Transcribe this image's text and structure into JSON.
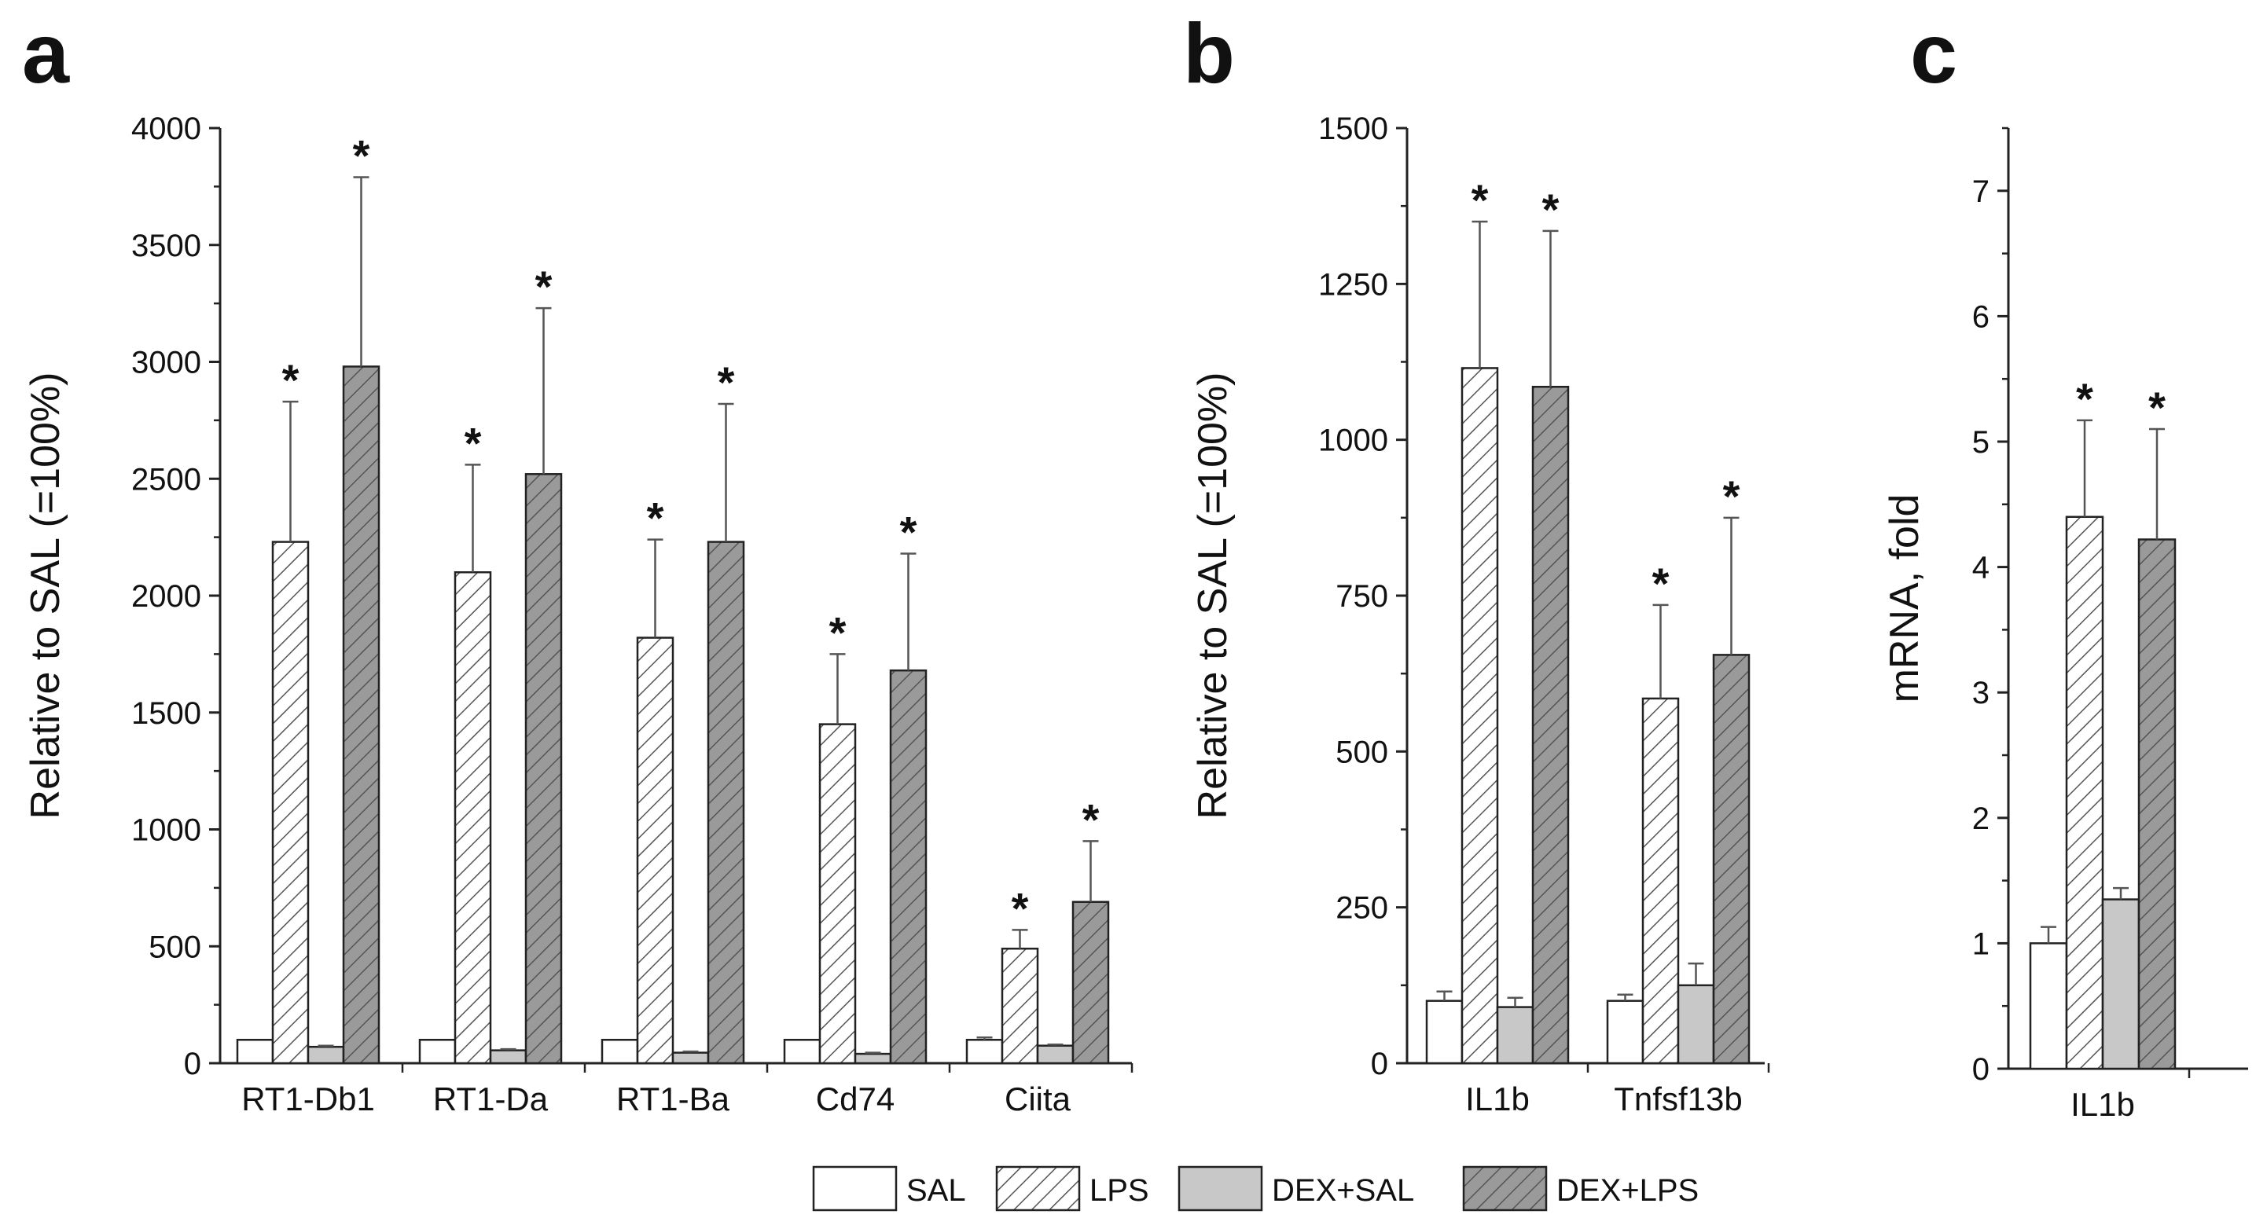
{
  "legend": [
    {
      "name": "SAL",
      "style": "white"
    },
    {
      "name": "LPS",
      "style": "white-hatched"
    },
    {
      "name": "DEX+SAL",
      "style": "gray"
    },
    {
      "name": "DEX+LPS",
      "style": "gray-hatched"
    }
  ],
  "colors": {
    "gray_fill": "#c8c8c8",
    "gray_hatched_fill": "#9a9a9a",
    "hatch_stroke": "#555555",
    "axis": "#222222",
    "error_bar": "#555555"
  },
  "chart_data": [
    {
      "panel": "a",
      "type": "bar",
      "ylabel": "Relative to SAL (=100%)",
      "xlabel": "",
      "ylim": [
        0,
        4000
      ],
      "yticks": [
        0,
        500,
        1000,
        1500,
        2000,
        2500,
        3000,
        3500,
        4000
      ],
      "categories": [
        "RT1-Db1",
        "RT1-Da",
        "RT1-Ba",
        "Cd74",
        "Ciita"
      ],
      "series": [
        {
          "name": "SAL",
          "values": [
            100,
            100,
            100,
            100,
            100
          ],
          "errors": [
            0,
            0,
            0,
            0,
            10
          ],
          "significant": [
            false,
            false,
            false,
            false,
            false
          ]
        },
        {
          "name": "LPS",
          "values": [
            2230,
            2100,
            1820,
            1450,
            490
          ],
          "errors": [
            600,
            460,
            420,
            300,
            80
          ],
          "significant": [
            true,
            true,
            true,
            true,
            true
          ]
        },
        {
          "name": "DEX+SAL",
          "values": [
            70,
            55,
            45,
            40,
            75
          ],
          "errors": [
            5,
            5,
            5,
            5,
            5
          ],
          "significant": [
            false,
            false,
            false,
            false,
            false
          ]
        },
        {
          "name": "DEX+LPS",
          "values": [
            2980,
            2520,
            2230,
            1680,
            690
          ],
          "errors": [
            810,
            710,
            590,
            500,
            260
          ],
          "significant": [
            true,
            true,
            true,
            true,
            true
          ]
        }
      ]
    },
    {
      "panel": "b",
      "type": "bar",
      "ylabel": "Relative to SAL (=100%)",
      "xlabel": "",
      "ylim": [
        0,
        1500
      ],
      "yticks": [
        0,
        250,
        500,
        750,
        1000,
        1250,
        1500
      ],
      "categories": [
        "IL1b",
        "Tnfsf13b"
      ],
      "series": [
        {
          "name": "SAL",
          "values": [
            100,
            100
          ],
          "errors": [
            15,
            10
          ],
          "significant": [
            false,
            false
          ]
        },
        {
          "name": "LPS",
          "values": [
            1115,
            585
          ],
          "errors": [
            235,
            150
          ],
          "significant": [
            true,
            true
          ]
        },
        {
          "name": "DEX+SAL",
          "values": [
            90,
            125
          ],
          "errors": [
            15,
            35
          ],
          "significant": [
            false,
            false
          ]
        },
        {
          "name": "DEX+LPS",
          "values": [
            1085,
            655
          ],
          "errors": [
            250,
            220
          ],
          "significant": [
            true,
            true
          ]
        }
      ]
    },
    {
      "panel": "c",
      "type": "bar",
      "ylabel": "mRNA, fold",
      "xlabel": "",
      "ylim": [
        0,
        7.5
      ],
      "yticks": [
        0,
        1,
        2,
        3,
        4,
        5,
        6,
        7
      ],
      "categories": [
        "IL1b"
      ],
      "series": [
        {
          "name": "SAL",
          "values": [
            1.0
          ],
          "errors": [
            0.13
          ],
          "significant": [
            false
          ]
        },
        {
          "name": "LPS",
          "values": [
            4.4
          ],
          "errors": [
            0.77
          ],
          "significant": [
            true
          ]
        },
        {
          "name": "DEX+SAL",
          "values": [
            1.35
          ],
          "errors": [
            0.09
          ],
          "significant": [
            false
          ]
        },
        {
          "name": "DEX+LPS",
          "values": [
            4.22
          ],
          "errors": [
            0.88
          ],
          "significant": [
            true
          ]
        }
      ]
    }
  ]
}
